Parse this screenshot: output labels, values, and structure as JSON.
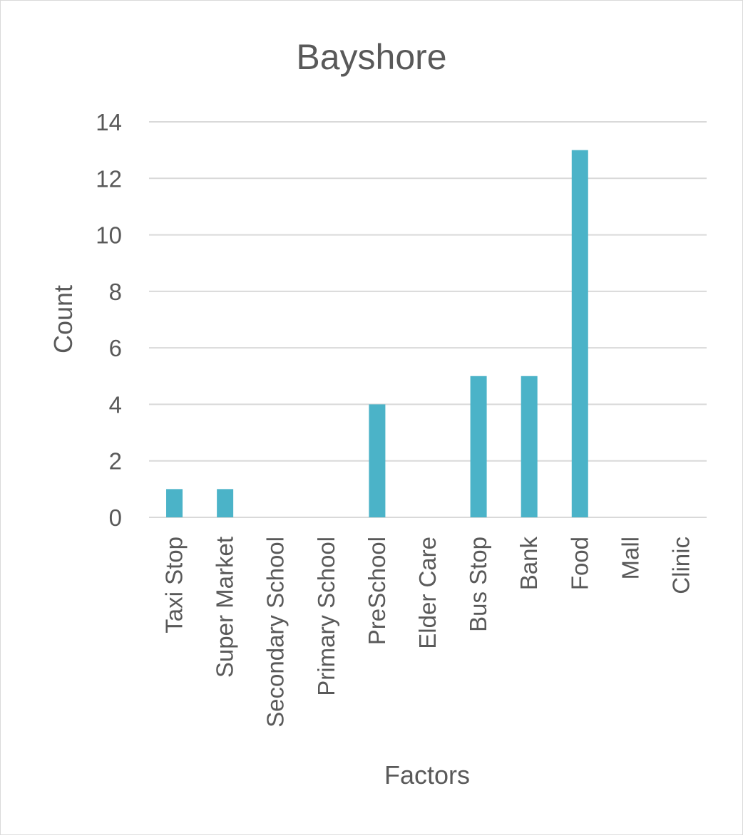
{
  "chart_data": {
    "type": "bar",
    "title": "Bayshore",
    "xlabel": "Factors",
    "ylabel": "Count",
    "categories": [
      "Taxi Stop",
      "Super Market",
      "Secondary School",
      "Primary School",
      "PreSchool",
      "Elder Care",
      "Bus Stop",
      "Bank",
      "Food",
      "Mall",
      "Clinic"
    ],
    "values": [
      1,
      1,
      0,
      0,
      4,
      0,
      5,
      5,
      13,
      0,
      0
    ],
    "ylim": [
      0,
      14
    ],
    "yticks": [
      "0",
      "2",
      "4",
      "6",
      "8",
      "10",
      "12",
      "14"
    ],
    "grid": true,
    "legend": "none",
    "colors": {
      "bar": "#4bb3c8",
      "grid": "#d9d9d9",
      "text": "#595959",
      "border": "#d9d9d9"
    }
  }
}
